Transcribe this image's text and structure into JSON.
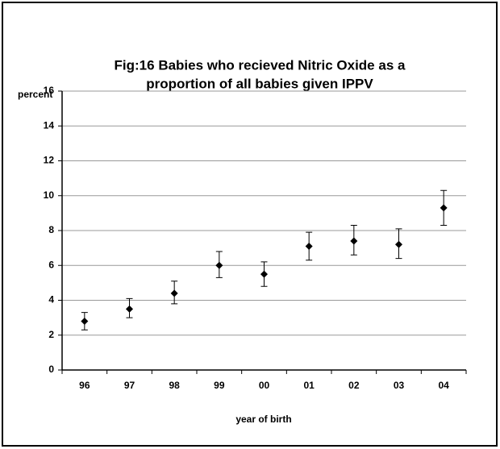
{
  "chart_data": {
    "type": "errorbar",
    "title": [
      "Fig:16   Babies who recieved Nitric Oxide as a",
      "proportion of all babies given IPPV"
    ],
    "ylabel": "percent",
    "xlabel": "year of birth",
    "categories": [
      "96",
      "97",
      "98",
      "99",
      "00",
      "01",
      "02",
      "03",
      "04"
    ],
    "values": [
      2.8,
      3.5,
      4.4,
      6.0,
      5.5,
      7.1,
      7.4,
      7.2,
      9.3
    ],
    "error_minus": [
      0.5,
      0.5,
      0.6,
      0.7,
      0.7,
      0.8,
      0.8,
      0.8,
      1.0
    ],
    "error_plus": [
      0.5,
      0.6,
      0.7,
      0.8,
      0.7,
      0.8,
      0.9,
      0.9,
      1.0
    ],
    "color": "#000000",
    "ylim": [
      0,
      16
    ],
    "yticks": [
      0,
      2,
      4,
      6,
      8,
      10,
      12,
      14,
      16
    ],
    "grid": true
  }
}
